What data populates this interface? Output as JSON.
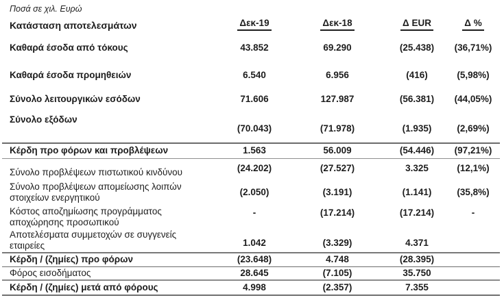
{
  "note": "Ποσά σε χιλ. Ευρώ",
  "table": {
    "title": "Κατάσταση αποτελεσμάτων",
    "columns": [
      "Δεκ-19",
      "Δεκ-18",
      "Δ EUR",
      "Δ %"
    ],
    "rows": [
      {
        "label": "Καθαρά έσοδα από τόκους",
        "dec19": "43.852",
        "dec18": "69.290",
        "d_eur": "(25.438)",
        "d_pct": "(36,71%)"
      },
      {
        "label": "Καθαρά έσοδα προμηθειών",
        "dec19": "6.540",
        "dec18": "6.956",
        "d_eur": "(416)",
        "d_pct": "(5,98%)"
      },
      {
        "label": "Σύνολο λειτουργικών εσόδων",
        "dec19": "71.606",
        "dec18": "127.987",
        "d_eur": "(56.381)",
        "d_pct": "(44,05%)"
      },
      {
        "label": "Σύνολο εξόδων",
        "dec19": "(70.043)",
        "dec18": "(71.978)",
        "d_eur": "(1.935)",
        "d_pct": "(2,69%)"
      },
      {
        "label": "Κέρδη προ φόρων και προβλέψεων",
        "dec19": "1.563",
        "dec18": "56.009",
        "d_eur": "(54.446)",
        "d_pct": "(97,21%)"
      },
      {
        "label": "Σύνολο προβλέψεων πιστωτικού κινδύνου",
        "dec19": "(24.202)",
        "dec18": "(27.527)",
        "d_eur": "3.325",
        "d_pct": "(12,1%)"
      },
      {
        "label": "Σύνολο προβλέψεων απομείωσης λοιπών στοιχείων ενεργητικού",
        "dec19": "(2.050)",
        "dec18": "(3.191)",
        "d_eur": "(1.141)",
        "d_pct": "(35,8%)"
      },
      {
        "label": "Κόστος αποζημίωσης προγράμματος αποχώρησης προσωπικού",
        "dec19": "-",
        "dec18": "(17.214)",
        "d_eur": "(17.214)",
        "d_pct": "-"
      },
      {
        "label": "Αποτελέσματα συμμετοχών σε συγγενείς εταιρείες",
        "dec19": "1.042",
        "dec18": "(3.329)",
        "d_eur": "4.371",
        "d_pct": ""
      },
      {
        "label": "Κέρδη / (ζημίες) προ φόρων",
        "dec19": "(23.648)",
        "dec18": "4.748",
        "d_eur": "(28.395)",
        "d_pct": ""
      },
      {
        "label": "Φόρος εισοδήματος",
        "dec19": "28.645",
        "dec18": "(7.105)",
        "d_eur": "35.750",
        "d_pct": ""
      },
      {
        "label": "Κέρδη / (ζημίες) μετά από φόρους",
        "dec19": "4.998",
        "dec18": "(2.357)",
        "d_eur": "7.355",
        "d_pct": ""
      }
    ]
  }
}
